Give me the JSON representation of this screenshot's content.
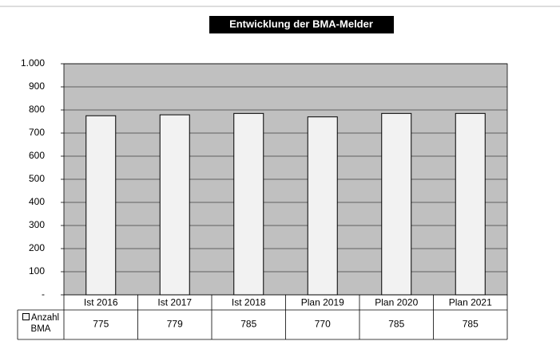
{
  "chart_data": {
    "type": "bar",
    "title": "Entwicklung der BMA-Melder",
    "categories": [
      "Ist  2016",
      "Ist 2017",
      "Ist 2018",
      "Plan  2019",
      "Plan 2020",
      "Plan 2021"
    ],
    "series": [
      {
        "name": "Anzahl BMA",
        "color": "#f2f2f2",
        "values": [
          775,
          779,
          785,
          770,
          785,
          785
        ]
      }
    ],
    "ylim": [
      0,
      1000
    ],
    "yticks": [
      {
        "value": 0,
        "label": "-"
      },
      100,
      200,
      300,
      400,
      500,
      600,
      700,
      800,
      900,
      {
        "value": 1000,
        "label": "1.000"
      }
    ],
    "grid": true,
    "plot_background": "#c0c0c0"
  }
}
